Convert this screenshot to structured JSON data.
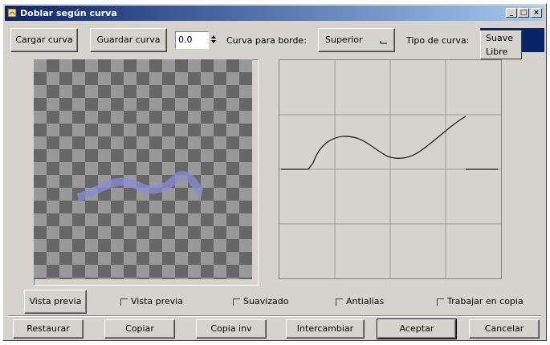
{
  "window": {
    "title": "Doblar según curva",
    "min_label": "_",
    "max_label": "□",
    "close_label": "×"
  },
  "toolbar": {
    "load_label": "Cargar curva",
    "save_label": "Guardar curva",
    "spin_value": "0.0",
    "curve_for_border_label": "Curva para borde:",
    "border_value": "Superior",
    "curve_type_label": "Tipo de curva:",
    "curve_type_options": [
      "Suave",
      "Libre"
    ]
  },
  "options": {
    "preview_button": "Vista previa",
    "preview_check": "Vista previa",
    "smoothing_check": "Suavizado",
    "antialias_check": "Antialias",
    "work_on_copy_check": "Trabajar en copia"
  },
  "actions": {
    "reset": "Restaurar",
    "copy": "Copiar",
    "copy_inv": "Copia inv",
    "swap": "Intercambiar",
    "ok": "Aceptar",
    "cancel": "Cancelar"
  },
  "colors": {
    "title_start": "#0a246a",
    "title_end": "#a6caf0",
    "dropdown_selected": "#0a246a",
    "preview_wave": "#7a7fc8"
  }
}
